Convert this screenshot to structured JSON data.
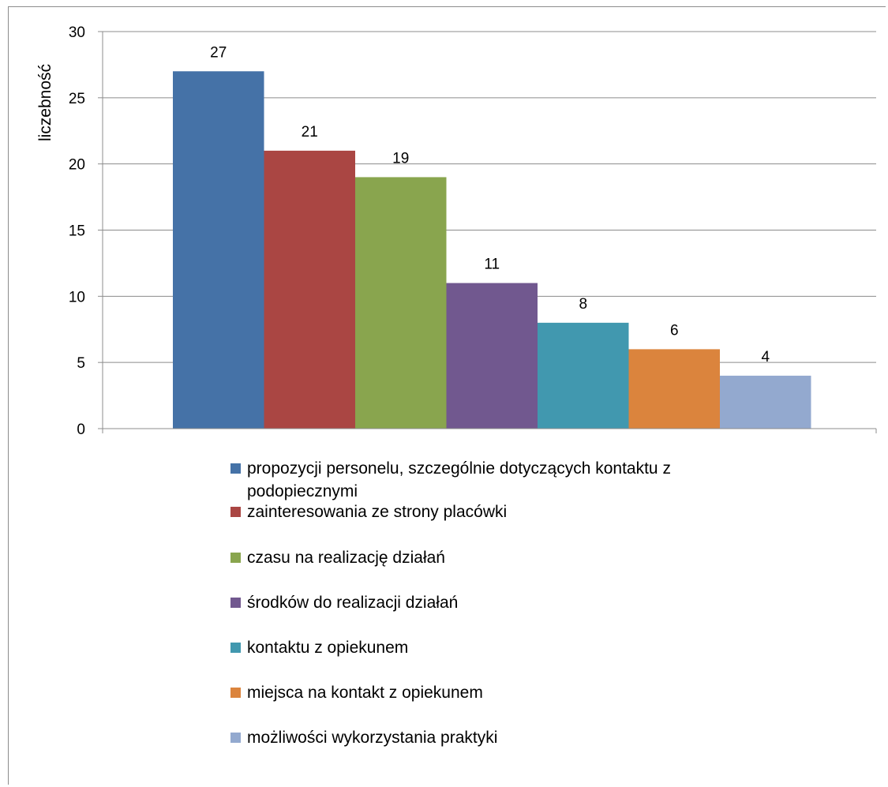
{
  "chart_data": {
    "type": "bar",
    "title": "",
    "xlabel": "",
    "ylabel": "liczebność",
    "ylim": [
      0,
      30
    ],
    "yticks": [
      0,
      5,
      10,
      15,
      20,
      25,
      30
    ],
    "grid": true,
    "legend_position": "bottom",
    "series": [
      {
        "name": "propozycji personelu, szczególnie dotyczących kontaktu z podopiecznymi",
        "value": 27,
        "color": "#4572A7"
      },
      {
        "name": "zainteresowania ze strony placówki",
        "value": 21,
        "color": "#AA4643"
      },
      {
        "name": "czasu na realizację działań",
        "value": 19,
        "color": "#89A54E"
      },
      {
        "name": "środków do realizacji działań",
        "value": 11,
        "color": "#71588F"
      },
      {
        "name": "kontaktu z opiekunem",
        "value": 8,
        "color": "#4198AF"
      },
      {
        "name": "miejsca na kontakt z opiekunem",
        "value": 6,
        "color": "#DB843D"
      },
      {
        "name": "możliwości wykorzystania praktyki",
        "value": 4,
        "color": "#93A9CF"
      }
    ]
  }
}
